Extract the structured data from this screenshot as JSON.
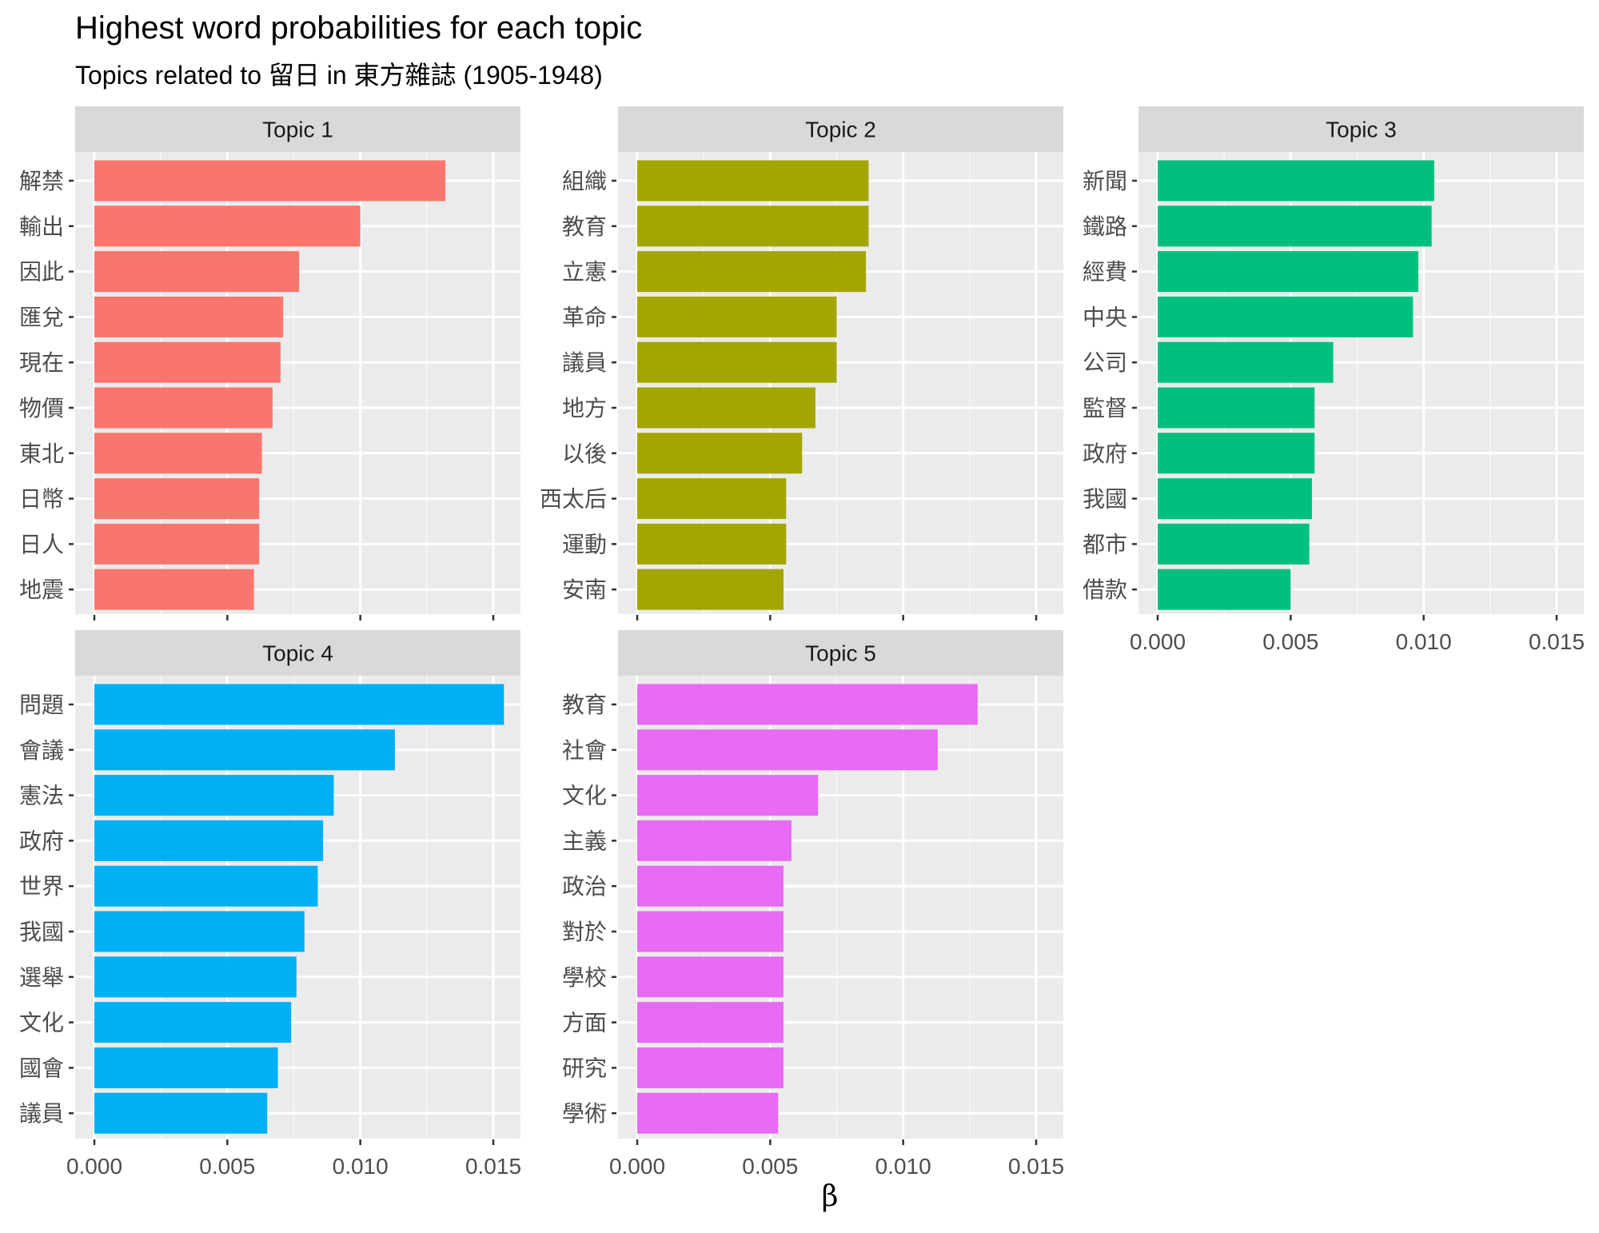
{
  "chart_data": {
    "type": "bar",
    "orientation": "horizontal",
    "title": "Highest word probabilities for each topic",
    "subtitle": "Topics related to 留日 in 東方雜誌 (1905-1948)",
    "xlabel": "β",
    "xlim": [
      0,
      0.016
    ],
    "x_ticks": [
      "0.000",
      "0.005",
      "0.010",
      "0.015"
    ],
    "grid": true,
    "panels": [
      {
        "name": "Topic 1",
        "color": "#F8766D",
        "categories": [
          "解禁",
          "輸出",
          "因此",
          "匯兌",
          "現在",
          "物價",
          "東北",
          "日幣",
          "日人",
          "地震"
        ],
        "values": [
          0.0132,
          0.01,
          0.0077,
          0.0071,
          0.007,
          0.0067,
          0.0063,
          0.0062,
          0.0062,
          0.006
        ]
      },
      {
        "name": "Topic 2",
        "color": "#A3A500",
        "categories": [
          "組織",
          "教育",
          "立憲",
          "革命",
          "議員",
          "地方",
          "以後",
          "西太后",
          "運動",
          "安南"
        ],
        "values": [
          0.0087,
          0.0087,
          0.0086,
          0.0075,
          0.0075,
          0.0067,
          0.0062,
          0.0056,
          0.0056,
          0.0055
        ]
      },
      {
        "name": "Topic 3",
        "color": "#00BF7D",
        "categories": [
          "新聞",
          "鐵路",
          "經費",
          "中央",
          "公司",
          "監督",
          "政府",
          "我國",
          "都市",
          "借款"
        ],
        "values": [
          0.0104,
          0.0103,
          0.0098,
          0.0096,
          0.0066,
          0.0059,
          0.0059,
          0.0058,
          0.0057,
          0.005
        ]
      },
      {
        "name": "Topic 4",
        "color": "#00B0F6",
        "categories": [
          "問題",
          "會議",
          "憲法",
          "政府",
          "世界",
          "我國",
          "選舉",
          "文化",
          "國會",
          "議員"
        ],
        "values": [
          0.0154,
          0.0113,
          0.009,
          0.0086,
          0.0084,
          0.0079,
          0.0076,
          0.0074,
          0.0069,
          0.0065
        ]
      },
      {
        "name": "Topic 5",
        "color": "#E76BF3",
        "categories": [
          "教育",
          "社會",
          "文化",
          "主義",
          "政治",
          "對於",
          "學校",
          "方面",
          "研究",
          "學術"
        ],
        "values": [
          0.0128,
          0.0113,
          0.0068,
          0.0058,
          0.0055,
          0.0055,
          0.0055,
          0.0055,
          0.0055,
          0.0053
        ]
      }
    ]
  }
}
